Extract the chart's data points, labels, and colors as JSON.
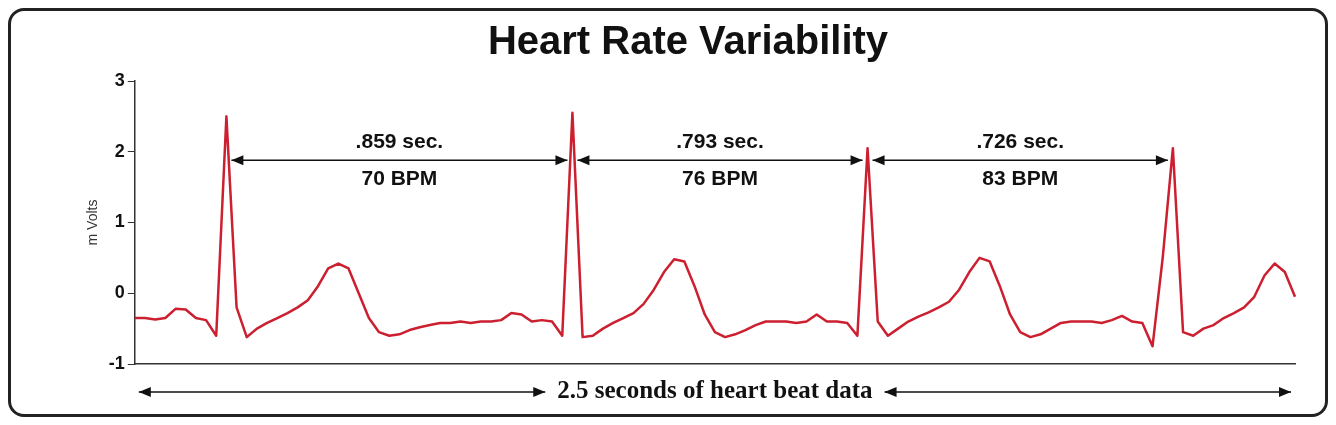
{
  "chart_data": {
    "type": "line",
    "title": "Heart Rate Variability",
    "ylabel": "m Volts",
    "categories": [
      null,
      null,
      null,
      null,
      null,
      null,
      null,
      null,
      null,
      null,
      null,
      null,
      null,
      null,
      null,
      null,
      null,
      null,
      null,
      null,
      null,
      null,
      null,
      null,
      null,
      null,
      null,
      null,
      null,
      null,
      null,
      null,
      null,
      null,
      null,
      null,
      null,
      null,
      null,
      null,
      null,
      null,
      null,
      null,
      null,
      null,
      null,
      null,
      null,
      null,
      null,
      null,
      null,
      null,
      null,
      null,
      null,
      null,
      null,
      null,
      null,
      null,
      null,
      null,
      null,
      null,
      null,
      null,
      null,
      null,
      null,
      null,
      null,
      null,
      null,
      null,
      null,
      null,
      null,
      null,
      null,
      null,
      null,
      null,
      null,
      null,
      null,
      null,
      null,
      null,
      null,
      null,
      null,
      null,
      null,
      null,
      null,
      null,
      null,
      null,
      null,
      null,
      null,
      null,
      null,
      null,
      null,
      null,
      null,
      null,
      null,
      null,
      null,
      null,
      null
    ],
    "series": [
      {
        "color": "#cc1f2f",
        "values": [
          -0.35,
          -0.35,
          -0.37,
          -0.35,
          -0.22,
          -0.23,
          -0.35,
          -0.38,
          -0.6,
          2.5,
          -0.2,
          -0.62,
          -0.5,
          -0.42,
          -0.35,
          -0.28,
          -0.2,
          -0.1,
          0.1,
          0.35,
          0.42,
          0.35,
          0.0,
          -0.35,
          -0.55,
          -0.6,
          -0.58,
          -0.52,
          -0.48,
          -0.45,
          -0.42,
          -0.42,
          -0.4,
          -0.42,
          -0.4,
          -0.4,
          -0.38,
          -0.28,
          -0.3,
          -0.4,
          -0.38,
          -0.4,
          -0.6,
          2.55,
          -0.62,
          -0.6,
          -0.5,
          -0.42,
          -0.35,
          -0.28,
          -0.15,
          0.05,
          0.3,
          0.48,
          0.45,
          0.1,
          -0.3,
          -0.55,
          -0.62,
          -0.58,
          -0.52,
          -0.45,
          -0.4,
          -0.4,
          -0.4,
          -0.42,
          -0.4,
          -0.3,
          -0.4,
          -0.4,
          -0.42,
          -0.6,
          2.05,
          -0.4,
          -0.6,
          -0.5,
          -0.4,
          -0.33,
          -0.27,
          -0.2,
          -0.12,
          0.05,
          0.3,
          0.5,
          0.45,
          0.1,
          -0.3,
          -0.55,
          -0.62,
          -0.58,
          -0.5,
          -0.42,
          -0.4,
          -0.4,
          -0.4,
          -0.42,
          -0.38,
          -0.32,
          -0.4,
          -0.42,
          -0.75,
          0.5,
          2.05,
          -0.55,
          -0.6,
          -0.5,
          -0.45,
          -0.35,
          -0.28,
          -0.2,
          -0.05,
          0.25,
          0.42,
          0.3,
          -0.05
        ]
      }
    ],
    "ylim": [
      -1,
      3
    ],
    "yticks": [
      -1,
      0,
      1,
      2,
      3
    ],
    "tick_labels": "y",
    "marker": "none",
    "annotations": [
      ".859 sec.",
      "70 BPM",
      ".793 sec.",
      "76 BPM",
      ".726 sec.",
      "83 BPM",
      "2.5 seconds of heart beat data"
    ]
  }
}
